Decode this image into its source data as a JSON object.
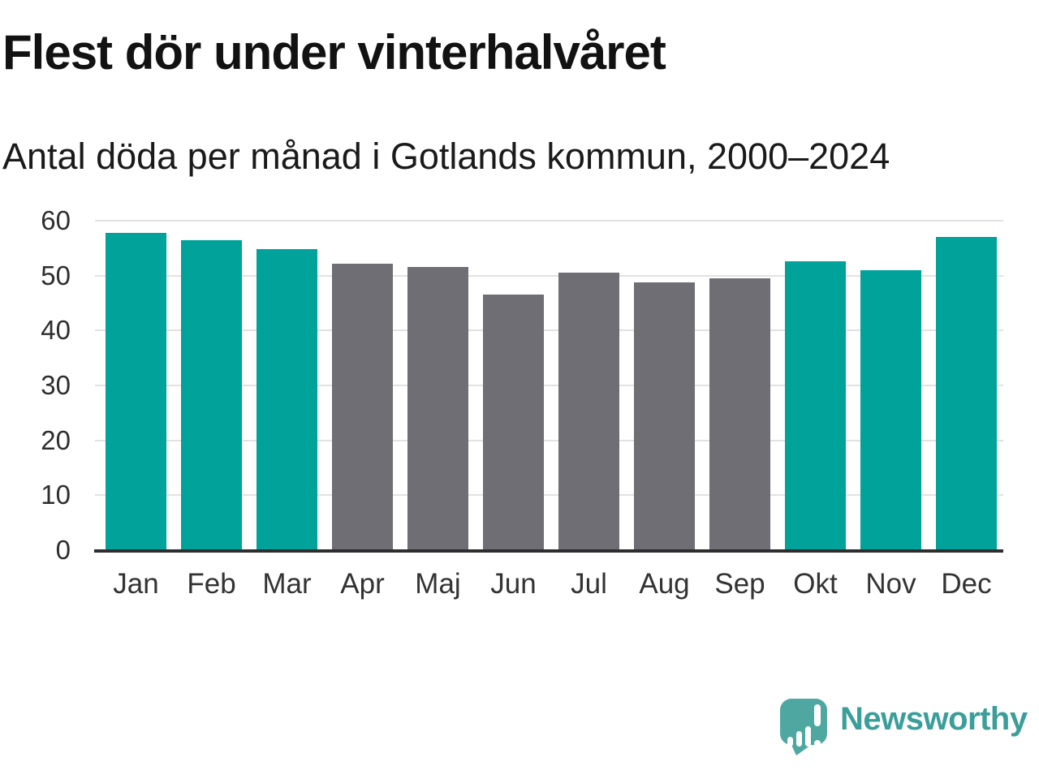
{
  "title": "Flest dör under vinterhalvåret",
  "subtitle": "Antal döda per månad i Gotlands kommun, 2000–2024",
  "chart_data": {
    "type": "bar",
    "title": "Flest dör under vinterhalvåret",
    "subtitle": "Antal döda per månad i Gotlands kommun, 2000–2024",
    "categories": [
      "Jan",
      "Feb",
      "Mar",
      "Apr",
      "Maj",
      "Jun",
      "Jul",
      "Aug",
      "Sep",
      "Okt",
      "Nov",
      "Dec"
    ],
    "values": [
      57.8,
      56.5,
      54.8,
      52.2,
      51.6,
      46.6,
      50.6,
      48.7,
      49.5,
      52.6,
      51.0,
      57.1
    ],
    "bar_colors": [
      "#00a29a",
      "#00a29a",
      "#00a29a",
      "#6e6e74",
      "#6e6e74",
      "#6e6e74",
      "#6e6e74",
      "#6e6e74",
      "#6e6e74",
      "#00a29a",
      "#00a29a",
      "#00a29a"
    ],
    "highlight_color": "#00a29a",
    "base_color": "#6e6e74",
    "highlighted_categories": [
      "Jan",
      "Feb",
      "Mar",
      "Okt",
      "Nov",
      "Dec"
    ],
    "xlabel": "",
    "ylabel": "",
    "ylim": [
      0,
      60
    ],
    "yticks": [
      0,
      10,
      20,
      30,
      40,
      50,
      60
    ],
    "grid": "horizontal",
    "legend": "none"
  },
  "branding": {
    "logo_text": "Newsworthy",
    "logo_icon": "newsworthy-speech-bubble-bar-chart-icon",
    "logo_mark_color": "#4ea8a1",
    "logo_text_color": "#3b9e9b"
  }
}
